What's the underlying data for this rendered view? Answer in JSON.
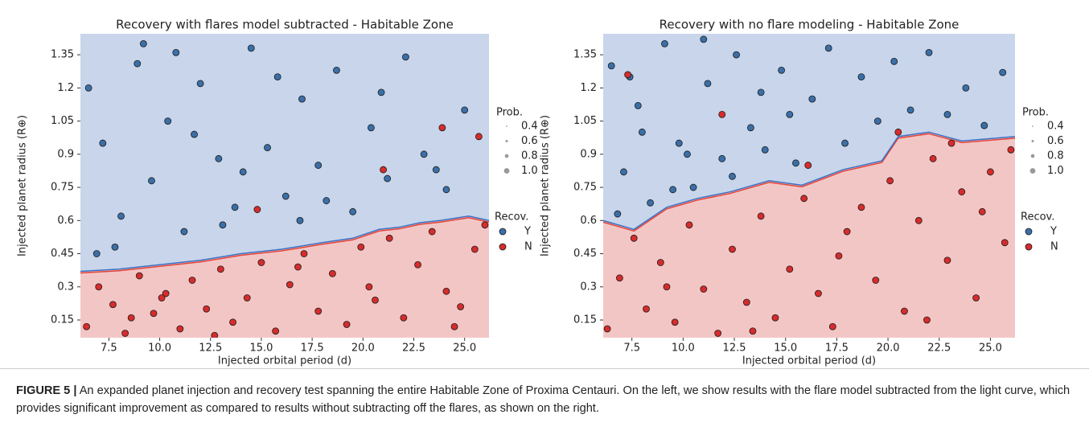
{
  "chart_data": [
    {
      "type": "scatter",
      "title": "Recovery with flares model subtracted - Habitable Zone",
      "x_label": "Injected orbital period (d)",
      "y_label": "Injected planet radius (R⊕)",
      "xlim": [
        6.1,
        26.2
      ],
      "ylim": [
        0.07,
        1.445
      ],
      "xticks": [
        7.5,
        {
          "value": 10,
          "label": "10.0"
        },
        12.5,
        {
          "value": 15,
          "label": "15.0"
        },
        17.5,
        {
          "value": 20,
          "label": "20.0"
        },
        22.5,
        {
          "value": 25,
          "label": "25.0"
        }
      ],
      "yticks": [
        0.15,
        0.3,
        0.45,
        0.6,
        0.75,
        0.9,
        1.05,
        1.2,
        1.35
      ],
      "size_legend_title": "Prob.",
      "size_legend": [
        0.4,
        0.6,
        0.8,
        {
          "value": 1,
          "label": "1.0"
        }
      ],
      "color_legend_title": "Recov.",
      "boundary": {
        "x": [
          6.1,
          8.0,
          10.0,
          12.0,
          14.0,
          16.0,
          18.0,
          19.5,
          20.8,
          21.8,
          22.8,
          23.8,
          25.2,
          26.2
        ],
        "y": [
          0.37,
          0.38,
          0.4,
          0.42,
          0.45,
          0.47,
          0.5,
          0.52,
          0.56,
          0.57,
          0.59,
          0.6,
          0.62,
          0.6
        ]
      },
      "series": [
        {
          "name": "Y",
          "color": "#3b6fa8",
          "x": [
            6.5,
            7.2,
            8.1,
            8.9,
            9.6,
            10.4,
            11.2,
            12.0,
            12.9,
            13.7,
            14.5,
            15.3,
            16.2,
            17.0,
            17.8,
            18.7,
            19.5,
            20.4,
            21.2,
            22.1,
            23.0,
            24.1,
            25.0,
            7.8,
            9.2,
            11.7,
            13.1,
            15.8,
            18.2,
            20.9,
            23.6,
            6.9,
            10.8,
            14.1,
            16.9
          ],
          "values": [
            1.2,
            0.95,
            0.62,
            1.31,
            0.78,
            1.05,
            0.55,
            1.22,
            0.88,
            0.66,
            1.38,
            0.93,
            0.71,
            1.15,
            0.85,
            1.28,
            0.64,
            1.02,
            0.79,
            1.34,
            0.9,
            0.74,
            1.1,
            0.48,
            1.4,
            0.99,
            0.58,
            1.25,
            0.69,
            1.18,
            0.83,
            0.45,
            1.36,
            0.82,
            0.6
          ]
        },
        {
          "name": "N",
          "color": "#d62c2c",
          "x": [
            6.4,
            7.0,
            7.7,
            8.3,
            9.0,
            9.7,
            10.3,
            11.0,
            11.6,
            12.3,
            13.0,
            13.6,
            14.3,
            15.0,
            15.7,
            16.4,
            17.1,
            17.8,
            18.5,
            19.2,
            19.9,
            20.6,
            21.3,
            22.0,
            22.7,
            23.4,
            24.1,
            24.8,
            25.5,
            26.0,
            8.6,
            12.7,
            16.8,
            20.3,
            24.5,
            21.0,
            23.9,
            25.7,
            14.8,
            10.1
          ],
          "values": [
            0.12,
            0.3,
            0.22,
            0.09,
            0.35,
            0.18,
            0.27,
            0.11,
            0.33,
            0.2,
            0.38,
            0.14,
            0.25,
            0.41,
            0.1,
            0.31,
            0.45,
            0.19,
            0.36,
            0.13,
            0.48,
            0.24,
            0.52,
            0.16,
            0.4,
            0.55,
            0.28,
            0.21,
            0.47,
            0.58,
            0.16,
            0.08,
            0.39,
            0.3,
            0.12,
            0.83,
            1.02,
            0.98,
            0.65,
            0.25
          ]
        }
      ]
    },
    {
      "type": "scatter",
      "title": "Recovery with no flare modeling - Habitable Zone",
      "x_label": "Injected orbital period (d)",
      "y_label": "Injected planet radius (R⊕)",
      "xlim": [
        6.1,
        26.2
      ],
      "ylim": [
        0.07,
        1.445
      ],
      "xticks": [
        7.5,
        {
          "value": 10,
          "label": "10.0"
        },
        12.5,
        {
          "value": 15,
          "label": "15.0"
        },
        17.5,
        {
          "value": 20,
          "label": "20.0"
        },
        22.5,
        {
          "value": 25,
          "label": "25.0"
        }
      ],
      "yticks": [
        0.15,
        0.3,
        0.45,
        0.6,
        0.75,
        0.9,
        1.05,
        1.2,
        1.35
      ],
      "size_legend_title": "Prob.",
      "size_legend": [
        0.4,
        0.6,
        0.8,
        {
          "value": 1,
          "label": "1.0"
        }
      ],
      "color_legend_title": "Recov.",
      "boundary": {
        "x": [
          6.1,
          7.6,
          9.2,
          10.7,
          12.3,
          14.2,
          15.8,
          17.8,
          19.7,
          20.5,
          22.0,
          23.6,
          26.2
        ],
        "y": [
          0.6,
          0.56,
          0.66,
          0.7,
          0.73,
          0.78,
          0.76,
          0.83,
          0.87,
          0.98,
          1.0,
          0.96,
          0.98
        ]
      },
      "series": [
        {
          "name": "Y",
          "color": "#3b6fa8",
          "x": [
            6.5,
            7.1,
            7.8,
            8.4,
            9.1,
            9.8,
            10.5,
            11.2,
            11.9,
            12.6,
            13.3,
            14.0,
            14.8,
            15.5,
            16.3,
            17.1,
            17.9,
            18.7,
            19.5,
            20.3,
            21.1,
            22.0,
            22.9,
            23.8,
            24.7,
            25.6,
            6.8,
            8.0,
            9.5,
            11.0,
            12.4,
            13.8,
            15.2,
            7.4,
            10.2
          ],
          "values": [
            1.3,
            0.82,
            1.12,
            0.68,
            1.4,
            0.95,
            0.75,
            1.22,
            0.88,
            1.35,
            1.02,
            0.92,
            1.28,
            0.86,
            1.15,
            1.38,
            0.95,
            1.25,
            1.05,
            1.32,
            1.1,
            1.36,
            1.08,
            1.2,
            1.03,
            1.27,
            0.63,
            1.0,
            0.74,
            1.42,
            0.8,
            1.18,
            1.08,
            1.25,
            0.9
          ]
        },
        {
          "name": "N",
          "color": "#d62c2c",
          "x": [
            6.3,
            6.9,
            7.6,
            8.2,
            8.9,
            9.6,
            10.3,
            11.0,
            11.7,
            12.4,
            13.1,
            13.8,
            14.5,
            15.2,
            15.9,
            16.6,
            17.3,
            18.0,
            18.7,
            19.4,
            20.1,
            20.8,
            21.5,
            22.2,
            22.9,
            23.6,
            24.3,
            25.0,
            25.7,
            26.0,
            9.2,
            13.4,
            17.6,
            21.9,
            24.6,
            7.3,
            11.9,
            16.1,
            20.5,
            23.1
          ],
          "values": [
            0.11,
            0.34,
            0.52,
            0.2,
            0.41,
            0.14,
            0.58,
            0.29,
            0.09,
            0.47,
            0.23,
            0.62,
            0.16,
            0.38,
            0.7,
            0.27,
            0.12,
            0.55,
            0.66,
            0.33,
            0.78,
            0.19,
            0.6,
            0.88,
            0.42,
            0.73,
            0.25,
            0.82,
            0.5,
            0.92,
            0.3,
            0.1,
            0.44,
            0.15,
            0.64,
            1.26,
            1.08,
            0.85,
            1.0,
            0.95
          ]
        }
      ]
    }
  ],
  "caption": {
    "label": "FIGURE 5 |",
    "text": "An expanded planet injection and recovery test spanning the entire Habitable Zone of Proxima Centauri. On the left, we show results with the flare model subtracted from the light curve, which provides significant improvement as compared to results without subtracting off the flares, as shown on the right."
  }
}
